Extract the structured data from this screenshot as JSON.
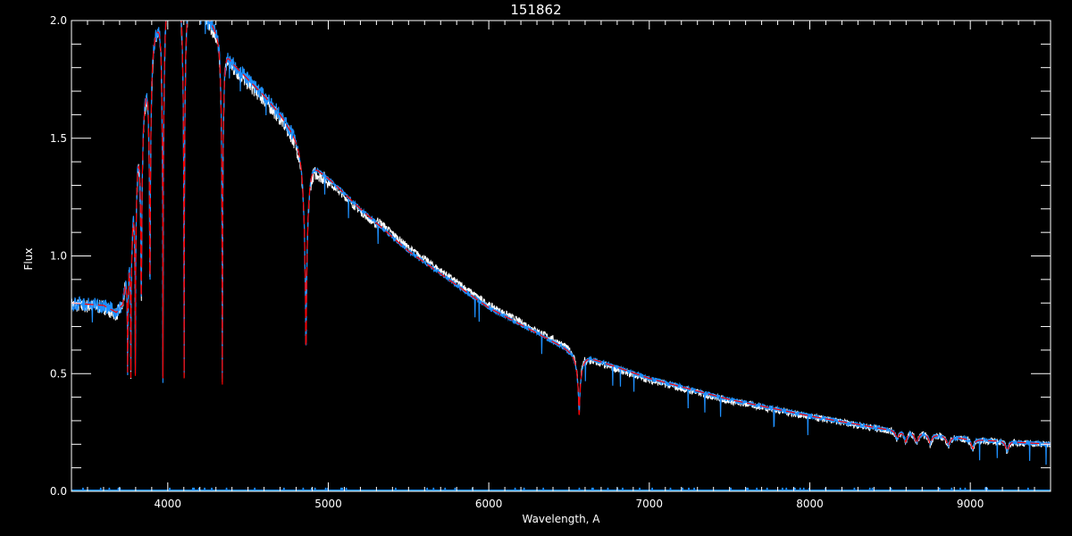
{
  "chart_data": {
    "type": "line",
    "title": "151862",
    "xlabel": "Wavelength, A",
    "ylabel": "Flux",
    "xlim": [
      3400,
      9500
    ],
    "ylim": [
      0,
      2
    ],
    "xticks": [
      "4000",
      "5000",
      "6000",
      "7000",
      "8000",
      "9000"
    ],
    "yticks": [
      "0.0",
      "0.5",
      "1.0",
      "1.5",
      "2.0"
    ],
    "grid": false,
    "colors": {
      "observed": "#ffffff",
      "model": "#ff0000",
      "spectrum": "#1e90ff",
      "background": "#000000"
    },
    "continuum": {
      "x": [
        3400,
        3600,
        3680,
        3720,
        3800,
        3900,
        4000,
        4200,
        4300,
        4400,
        4500,
        4600,
        4700,
        4800,
        4950,
        5000,
        5200,
        5500,
        6000,
        6500,
        6700,
        7000,
        7500,
        8000,
        8500,
        9000,
        9500
      ],
      "y": [
        0.8,
        0.79,
        0.76,
        0.8,
        1.4,
        1.9,
        2.1,
        2.08,
        1.95,
        1.82,
        1.75,
        1.68,
        1.6,
        1.5,
        1.36,
        1.33,
        1.2,
        1.02,
        0.78,
        0.6,
        0.55,
        0.48,
        0.39,
        0.32,
        0.26,
        0.22,
        0.2
      ]
    },
    "absorption_lines": [
      {
        "x": 3750,
        "min": 0.52
      },
      {
        "x": 3770,
        "min": 0.5
      },
      {
        "x": 3798,
        "min": 0.5
      },
      {
        "x": 3835,
        "min": 0.5
      },
      {
        "x": 3889,
        "min": 0.5
      },
      {
        "x": 3970,
        "min": 0.48
      },
      {
        "x": 4102,
        "min": 0.48
      },
      {
        "x": 4340,
        "min": 0.45
      },
      {
        "x": 4861,
        "min": 0.42
      },
      {
        "x": 6563,
        "min": 0.27
      },
      {
        "x": 8545,
        "min": 0.22
      },
      {
        "x": 8598,
        "min": 0.21
      },
      {
        "x": 8665,
        "min": 0.2
      },
      {
        "x": 8750,
        "min": 0.2
      },
      {
        "x": 8863,
        "min": 0.19
      },
      {
        "x": 9015,
        "min": 0.18
      },
      {
        "x": 9229,
        "min": 0.17
      }
    ]
  }
}
